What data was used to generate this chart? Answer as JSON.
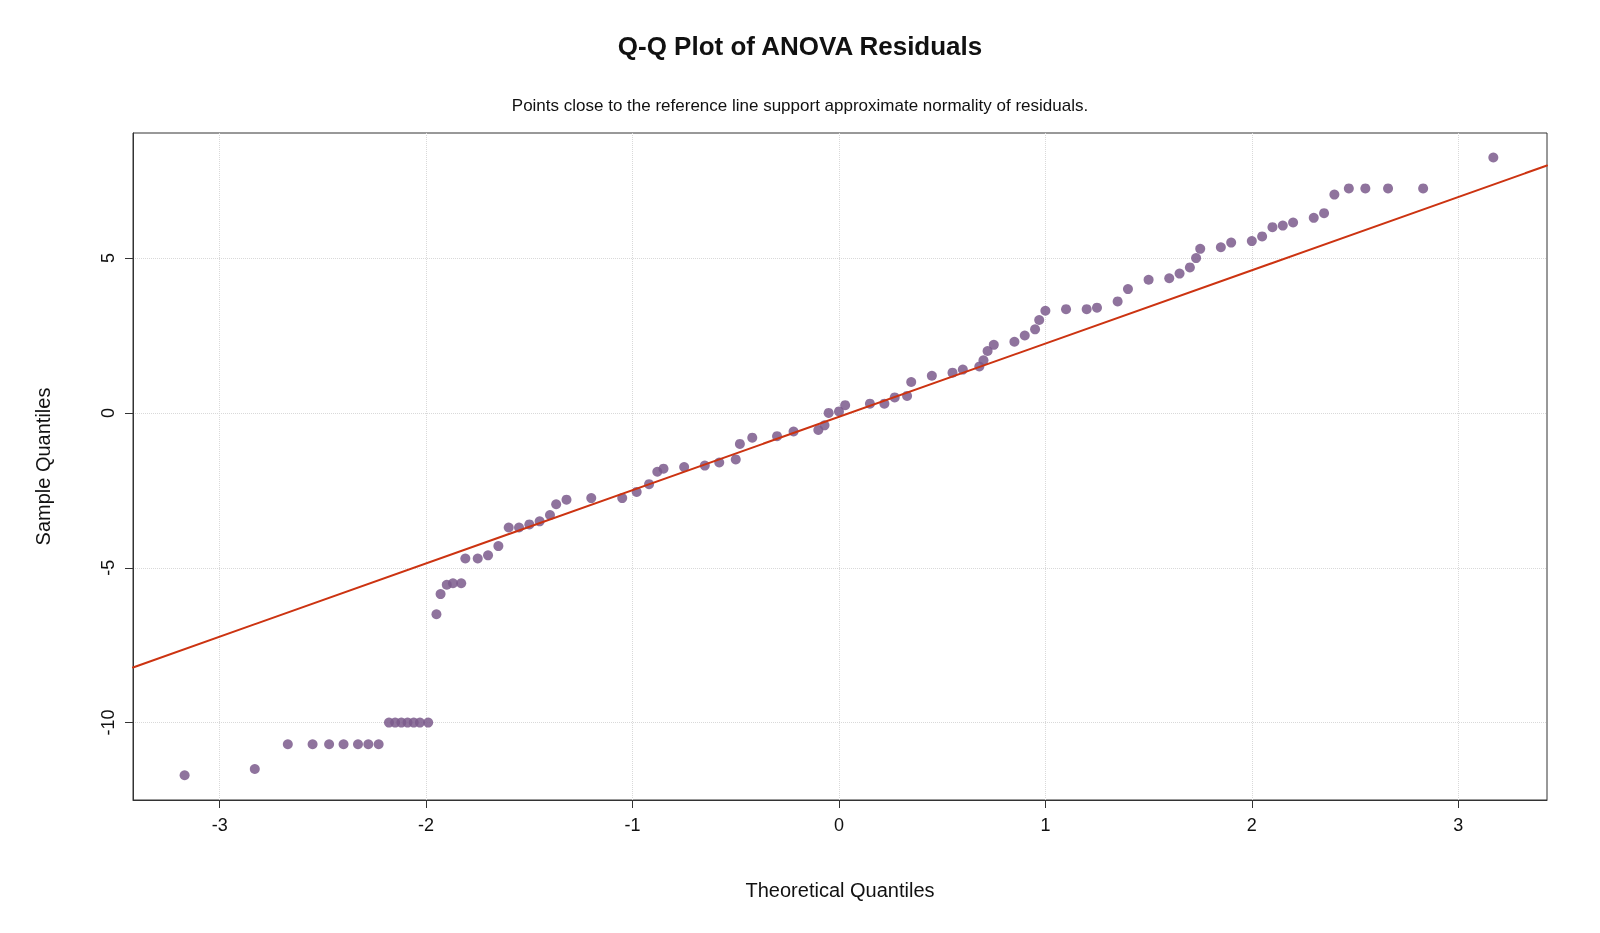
{
  "chart_data": {
    "type": "scatter",
    "title": "Q-Q Plot of ANOVA Residuals",
    "subtitle": "Points close to the reference line support approximate normality of residuals.",
    "xlabel": "Theoretical Quantiles",
    "ylabel": "Sample Quantiles",
    "xlim": [
      -3.42,
      3.43
    ],
    "ylim": [
      -12.5,
      9.04
    ],
    "xticks": [
      -3,
      -2,
      -1,
      0,
      1,
      2,
      3
    ],
    "yticks": [
      -10,
      -5,
      0,
      5
    ],
    "grid": true,
    "marker": "circle",
    "series": [
      {
        "type": "scatter",
        "color": "#7b5a8c",
        "x": [
          -3.17,
          -2.83,
          -2.67,
          -2.55,
          -2.47,
          -2.4,
          -2.33,
          -2.28,
          -2.23,
          -2.18,
          -2.15,
          -2.12,
          -2.09,
          -2.06,
          -2.03,
          -1.99,
          -1.95,
          -1.93,
          -1.9,
          -1.87,
          -1.83,
          -1.81,
          -1.75,
          -1.7,
          -1.65,
          -1.6,
          -1.55,
          -1.5,
          -1.45,
          -1.4,
          -1.37,
          -1.32,
          -1.2,
          -1.05,
          -0.98,
          -0.92,
          -0.88,
          -0.85,
          -0.75,
          -0.65,
          -0.58,
          -0.5,
          -0.48,
          -0.42,
          -0.3,
          -0.22,
          -0.1,
          -0.07,
          -0.05,
          0,
          0.03,
          0.15,
          0.22,
          0.27,
          0.33,
          0.35,
          0.45,
          0.55,
          0.6,
          0.68,
          0.7,
          0.72,
          0.75,
          0.85,
          0.9,
          0.95,
          0.97,
          1,
          1.1,
          1.2,
          1.25,
          1.35,
          1.4,
          1.5,
          1.6,
          1.65,
          1.7,
          1.73,
          1.75,
          1.85,
          1.9,
          2,
          2.05,
          2.1,
          2.15,
          2.2,
          2.3,
          2.35,
          2.4,
          2.47,
          2.55,
          2.66,
          2.83,
          3.17
        ],
        "values": [
          -11.7,
          -11.5,
          -10.7,
          -10.7,
          -10.7,
          -10.7,
          -10.7,
          -10.7,
          -10.7,
          -10,
          -10,
          -10,
          -10,
          -10,
          -10,
          -10,
          -6.5,
          -5.85,
          -5.55,
          -5.5,
          -5.5,
          -4.7,
          -4.7,
          -4.6,
          -4.3,
          -3.7,
          -3.7,
          -3.6,
          -3.5,
          -3.3,
          -2.95,
          -2.8,
          -2.75,
          -2.75,
          -2.55,
          -2.3,
          -1.9,
          -1.8,
          -1.75,
          -1.7,
          -1.6,
          -1.5,
          -1,
          -0.8,
          -0.75,
          -0.6,
          -0.55,
          -0.4,
          0,
          0.05,
          0.25,
          0.3,
          0.3,
          0.5,
          0.55,
          1,
          1.2,
          1.3,
          1.4,
          1.5,
          1.7,
          2,
          2.2,
          2.3,
          2.5,
          2.7,
          3,
          3.3,
          3.35,
          3.35,
          3.4,
          3.6,
          4,
          4.3,
          4.35,
          4.5,
          4.7,
          5,
          5.3,
          5.35,
          5.5,
          5.55,
          5.7,
          6,
          6.05,
          6.15,
          6.3,
          6.45,
          7.05,
          7.25,
          7.25,
          7.25,
          7.25,
          8.25
        ]
      },
      {
        "type": "line",
        "color": "#cc3311",
        "marker": "none",
        "line_style": "solid",
        "x": [
          -3.42,
          3.43
        ],
        "values": [
          -8.22,
          7.99
        ]
      }
    ]
  }
}
